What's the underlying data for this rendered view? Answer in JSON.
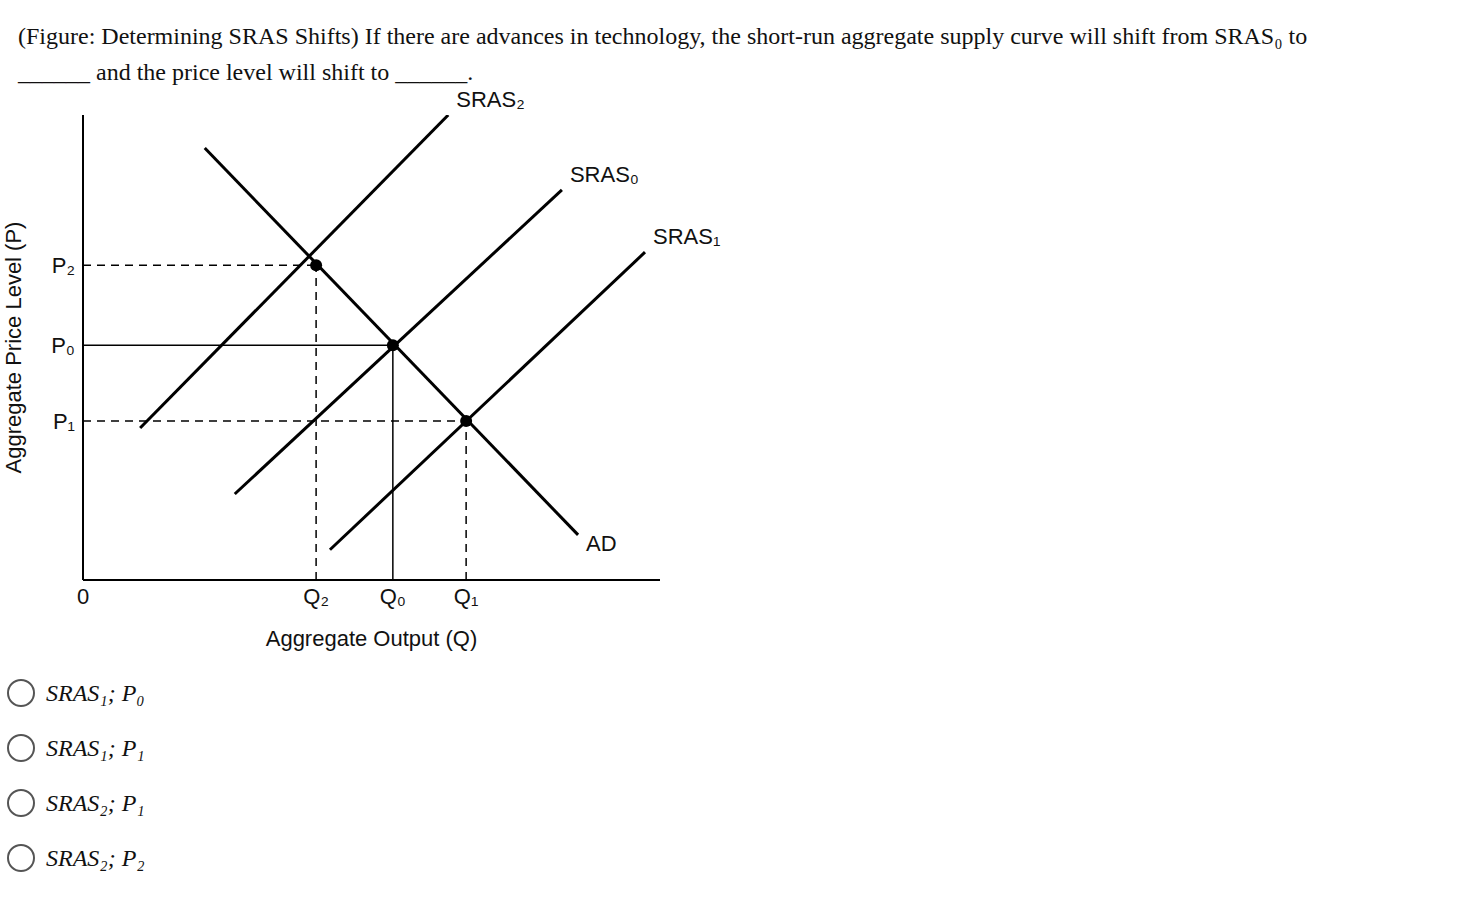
{
  "question": "(Figure: Determining SRAS Shifts) If there are advances in technology, the short-run aggregate supply curve will shift from SRAS₀ to ______ and the price level will shift to ______.",
  "options": [
    "SRAS₁; P₀",
    "SRAS₁; P₁",
    "SRAS₂; P₁",
    "SRAS₂; P₂"
  ],
  "chart_data": {
    "type": "line",
    "x_label": "Aggregate Output (Q)",
    "y_label": "Aggregate Price Level (P)",
    "grid": false,
    "series": [
      {
        "name": "AD",
        "color": "#000000",
        "line_style": "solid",
        "x": [
          2.11,
          8.58
        ],
        "values": [
          9.29,
          0.97
        ]
      },
      {
        "name": "SRAS₂",
        "color": "#000000",
        "line_style": "solid",
        "x": [
          0.99,
          6.33
        ],
        "values": [
          3.27,
          10.0
        ]
      },
      {
        "name": "SRAS₀",
        "color": "#000000",
        "line_style": "solid",
        "x": [
          2.63,
          8.3
        ],
        "values": [
          1.85,
          8.39
        ]
      },
      {
        "name": "SRAS₁",
        "color": "#000000",
        "line_style": "solid",
        "x": [
          4.28,
          9.74
        ],
        "values": [
          0.65,
          7.05
        ]
      }
    ],
    "equilibria": [
      {
        "x": 4.04,
        "y": 6.77,
        "line_style": "dashed",
        "marker": "circle"
      },
      {
        "x": 5.37,
        "y": 5.05,
        "line_style": "solid",
        "marker": "circle"
      },
      {
        "x": 6.64,
        "y": 3.42,
        "line_style": "dashed",
        "marker": "circle"
      }
    ],
    "xlim": [
      0,
      10
    ],
    "ylim": [
      0,
      10
    ],
    "xticks": [
      {
        "value": 0,
        "label": "0"
      },
      {
        "value": 4.04,
        "label": "Q₂"
      },
      {
        "value": 5.37,
        "label": "Q₀"
      },
      {
        "value": 6.64,
        "label": "Q₁"
      }
    ],
    "yticks": [
      {
        "value": 3.42,
        "label": "P₁"
      },
      {
        "value": 5.05,
        "label": "P₀"
      },
      {
        "value": 6.77,
        "label": "P₂"
      }
    ]
  }
}
